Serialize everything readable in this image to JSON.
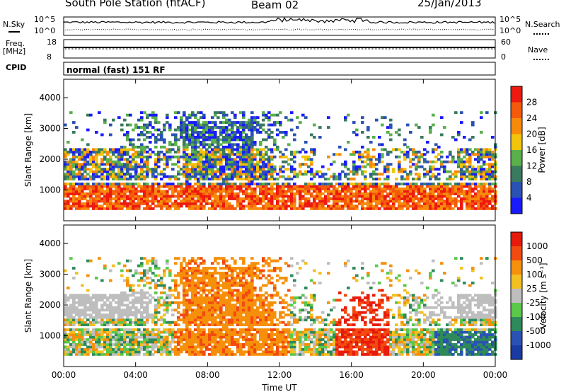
{
  "header": {
    "station": "South Pole Station (fitACF)",
    "beam": "Beam 02",
    "date": "25/Jan/2013"
  },
  "labels": {
    "nsky": "N.Sky",
    "nsearch": "N.Search",
    "freq_top": "Freq.",
    "freq_unit": "[MHz]",
    "nave": "Nave",
    "cpid": "CPID",
    "cpid_value": "normal (fast) 151 RF",
    "noise_left_ticks": [
      "10^5",
      "10^0"
    ],
    "noise_right_ticks": [
      "10^5",
      "10^0"
    ],
    "freq_left_ticks": [
      "18",
      "8"
    ],
    "nave_right_ticks": [
      "60",
      "0"
    ]
  },
  "colors": {
    "power": [
      "#1a1aff",
      "#2a52b4",
      "#3a7a5e",
      "#5ab04a",
      "#f2c40a",
      "#f88a0a",
      "#f45a0a",
      "#ee1a10"
    ],
    "velocity": [
      "#e81a0a",
      "#f24a10",
      "#f6900a",
      "#f2c020",
      "#bebebe",
      "#5ac84a",
      "#2e8a5a",
      "#2a52b4",
      "#1a3aa4"
    ],
    "frame": "#000000"
  },
  "chart_data": [
    {
      "type": "heatmap",
      "title": "Power",
      "xlabel": "",
      "ylabel": "Slant Range [km]",
      "x_ticks": [
        "00:00",
        "04:00",
        "08:00",
        "12:00",
        "16:00",
        "20:00",
        "00:00"
      ],
      "y_ticks": [
        "1000",
        "2000",
        "3000",
        "4000"
      ],
      "xlim": [
        0,
        24
      ],
      "ylim": [
        0,
        4600
      ],
      "colorbar": {
        "label": "Power [dB]",
        "ticks": [
          "4",
          "8",
          "12",
          "16",
          "20",
          "24",
          "28"
        ],
        "range": [
          0,
          32
        ]
      }
    },
    {
      "type": "heatmap",
      "title": "Velocity",
      "xlabel": "Time UT",
      "ylabel": "Slant Range [km]",
      "x_ticks": [
        "00:00",
        "04:00",
        "08:00",
        "12:00",
        "16:00",
        "20:00",
        "00:00"
      ],
      "y_ticks": [
        "1000",
        "2000",
        "3000",
        "4000"
      ],
      "xlim": [
        0,
        24
      ],
      "ylim": [
        0,
        4600
      ],
      "colorbar": {
        "label": "Velocity [m s⁻¹]",
        "ticks": [
          "1000",
          "500",
          "100",
          "25",
          "-25",
          "-100",
          "-500",
          "-1000"
        ]
      }
    }
  ]
}
